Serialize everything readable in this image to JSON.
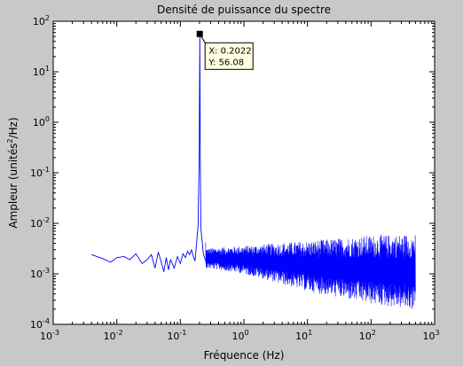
{
  "chart_data": {
    "type": "line",
    "title": "Densité de puissance du spectre",
    "xlabel": "Fréquence (Hz)",
    "ylabel_prefix": "Ampleur (unités",
    "ylabel_sup": "2",
    "ylabel_suffix": "/Hz)",
    "x_scale": "log",
    "y_scale": "log",
    "xlim": [
      0.001,
      1000
    ],
    "ylim": [
      0.0001,
      100
    ],
    "x_ticks": [
      {
        "value": 0.001,
        "base": "10",
        "exp": "-3"
      },
      {
        "value": 0.01,
        "base": "10",
        "exp": "-2"
      },
      {
        "value": 0.1,
        "base": "10",
        "exp": "-1"
      },
      {
        "value": 1,
        "base": "10",
        "exp": "0"
      },
      {
        "value": 10,
        "base": "10",
        "exp": "1"
      },
      {
        "value": 100,
        "base": "10",
        "exp": "2"
      },
      {
        "value": 1000,
        "base": "10",
        "exp": "3"
      }
    ],
    "y_ticks": [
      {
        "value": 0.0001,
        "base": "10",
        "exp": "-4"
      },
      {
        "value": 0.001,
        "base": "10",
        "exp": "-3"
      },
      {
        "value": 0.01,
        "base": "10",
        "exp": "-2"
      },
      {
        "value": 0.1,
        "base": "10",
        "exp": "-1"
      },
      {
        "value": 1,
        "base": "10",
        "exp": "0"
      },
      {
        "value": 10,
        "base": "10",
        "exp": "1"
      },
      {
        "value": 100,
        "base": "10",
        "exp": "2"
      }
    ],
    "grid": false,
    "series": [
      {
        "color": "#0000ff",
        "values_approx": [
          [
            0.004,
            0.0024
          ],
          [
            0.006,
            0.002
          ],
          [
            0.008,
            0.0017
          ],
          [
            0.01,
            0.0021
          ],
          [
            0.013,
            0.0022
          ],
          [
            0.016,
            0.0019
          ],
          [
            0.02,
            0.0025
          ],
          [
            0.025,
            0.0016
          ],
          [
            0.03,
            0.0019
          ],
          [
            0.035,
            0.0024
          ],
          [
            0.04,
            0.0013
          ],
          [
            0.045,
            0.0027
          ],
          [
            0.05,
            0.0017
          ],
          [
            0.055,
            0.0011
          ],
          [
            0.06,
            0.0021
          ],
          [
            0.065,
            0.0012
          ],
          [
            0.07,
            0.0019
          ],
          [
            0.08,
            0.0013
          ],
          [
            0.09,
            0.0022
          ],
          [
            0.1,
            0.0016
          ],
          [
            0.11,
            0.0025
          ],
          [
            0.12,
            0.0021
          ],
          [
            0.13,
            0.0028
          ],
          [
            0.14,
            0.0024
          ],
          [
            0.15,
            0.003
          ],
          [
            0.16,
            0.0022
          ],
          [
            0.17,
            0.0018
          ],
          [
            0.18,
            0.004
          ],
          [
            0.19,
            0.009
          ],
          [
            0.198,
            0.2
          ],
          [
            0.2022,
            56.08
          ],
          [
            0.206,
            0.2
          ],
          [
            0.21,
            0.008
          ],
          [
            0.22,
            0.0045
          ],
          [
            0.23,
            0.0025
          ],
          [
            0.25,
            0.0018
          ]
        ],
        "noise_band": {
          "x_range": [
            0.25,
            500
          ],
          "upper_envelope": [
            [
              0.25,
              0.0032
            ],
            [
              1,
              0.0036
            ],
            [
              10,
              0.0045
            ],
            [
              100,
              0.0058
            ],
            [
              500,
              0.0062
            ]
          ],
          "lower_envelope": [
            [
              0.25,
              0.0013
            ],
            [
              1,
              0.001
            ],
            [
              10,
              0.00045
            ],
            [
              100,
              0.00025
            ],
            [
              500,
              0.00019
            ]
          ]
        }
      }
    ],
    "datatip": {
      "x_text": "X: 0.2022",
      "y_text": "Y: 56.08",
      "x": 0.2022,
      "y": 56.08
    }
  }
}
